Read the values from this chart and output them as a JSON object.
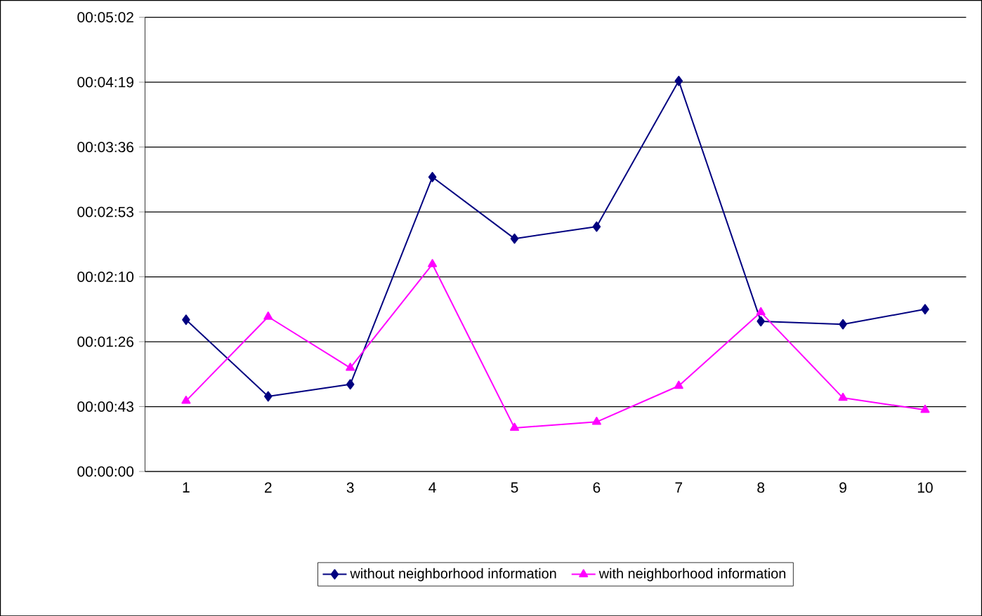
{
  "chart_data": {
    "type": "line",
    "categories": [
      "1",
      "2",
      "3",
      "4",
      "5",
      "6",
      "7",
      "8",
      "9",
      "10"
    ],
    "series": [
      {
        "name": "without neighborhood information",
        "color": "#000080",
        "marker": "diamond",
        "values": [
          101,
          50,
          58,
          196,
          155,
          163,
          260,
          100,
          98,
          108
        ]
      },
      {
        "name": "with neighborhood information",
        "color": "#ff00ff",
        "marker": "triangle",
        "values": [
          47,
          103,
          69,
          138,
          29,
          33,
          57,
          106,
          49,
          41
        ]
      }
    ],
    "ylim": [
      0,
      302.4
    ],
    "yticks": [
      {
        "value": 0,
        "label": "00:00:00"
      },
      {
        "value": 43.2,
        "label": "00:00:43"
      },
      {
        "value": 86.4,
        "label": "00:01:26"
      },
      {
        "value": 129.6,
        "label": "00:02:10"
      },
      {
        "value": 172.8,
        "label": "00:02:53"
      },
      {
        "value": 216,
        "label": "00:03:36"
      },
      {
        "value": 259.2,
        "label": "00:04:19"
      },
      {
        "value": 302.4,
        "label": "00:05:02"
      }
    ],
    "grid": "y",
    "legend": "bottom",
    "line_style": "solid"
  }
}
